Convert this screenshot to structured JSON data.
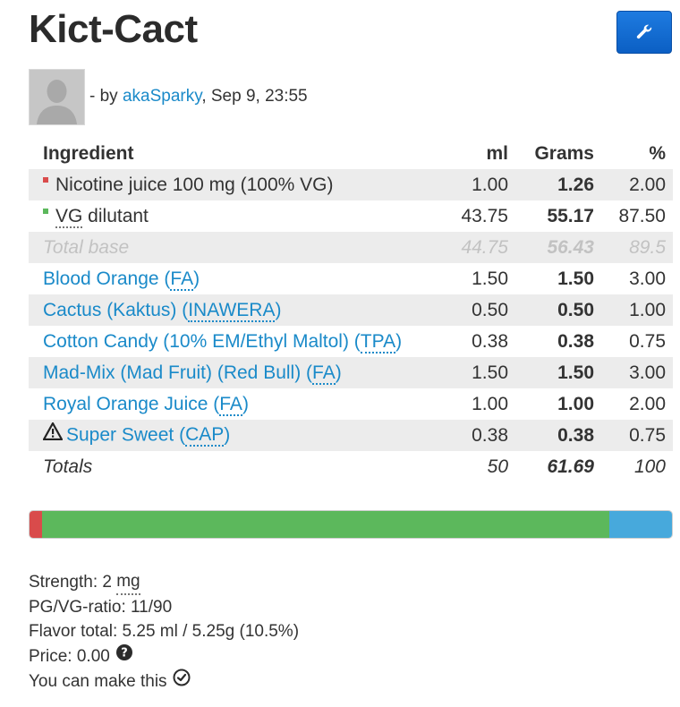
{
  "recipe": {
    "title": "Kict-Cact",
    "by_prefix": "- by ",
    "author": "akaSparky",
    "date": ", Sep 9, 23:55"
  },
  "toolbar": {
    "edit_icon": "wrench-icon"
  },
  "table": {
    "headers": {
      "ingredient": "Ingredient",
      "ml": "ml",
      "grams": "Grams",
      "percent": "%"
    },
    "nicotine": {
      "name": "Nicotine juice 100 mg (100% VG)",
      "ml": "1.00",
      "grams": "1.26",
      "percent": "2.00",
      "color": "#d94b4b"
    },
    "vg": {
      "prefix": "VG",
      "suffix": " dilutant",
      "ml": "43.75",
      "grams": "55.17",
      "percent": "87.50",
      "color": "#5cb85c"
    },
    "base": {
      "label": "Total base",
      "ml": "44.75",
      "grams": "56.43",
      "percent": "89.5"
    },
    "flavors": [
      {
        "name": "Blood Orange (",
        "vendor": "FA",
        "close": ")",
        "ml": "1.50",
        "grams": "1.50",
        "percent": "3.00"
      },
      {
        "name": "Cactus (Kaktus) (",
        "vendor": "INAWERA",
        "close": ")",
        "ml": "0.50",
        "grams": "0.50",
        "percent": "1.00"
      },
      {
        "name": "Cotton Candy (10% EM/Ethyl Maltol) (",
        "vendor": "TPA",
        "close": ")",
        "ml": "0.38",
        "grams": "0.38",
        "percent": "0.75"
      },
      {
        "name": "Mad-Mix (Mad Fruit) (Red Bull) (",
        "vendor": "FA",
        "close": ")",
        "ml": "1.50",
        "grams": "1.50",
        "percent": "3.00"
      },
      {
        "name": "Royal Orange Juice (",
        "vendor": "FA",
        "close": ")",
        "ml": "1.00",
        "grams": "1.00",
        "percent": "2.00"
      },
      {
        "name": "Super Sweet (",
        "vendor": "CAP",
        "close": ")",
        "ml": "0.38",
        "grams": "0.38",
        "percent": "0.75"
      }
    ],
    "totals": {
      "label": "Totals",
      "ml": "50",
      "grams": "61.69",
      "percent": "100"
    }
  },
  "composition_bar": {
    "nicotine_color": "#d94b4b",
    "vg_color": "#5cb85c",
    "flavor_color": "#47a9dc"
  },
  "info": {
    "strength_label": "Strength: 2 ",
    "strength_unit": "mg",
    "ratio": "PG/VG-ratio: 11/90",
    "flavor_total": "Flavor total: 5.25 ml / 5.25g (10.5%)",
    "price": "Price: 0.00",
    "can_make": "You can make this"
  }
}
